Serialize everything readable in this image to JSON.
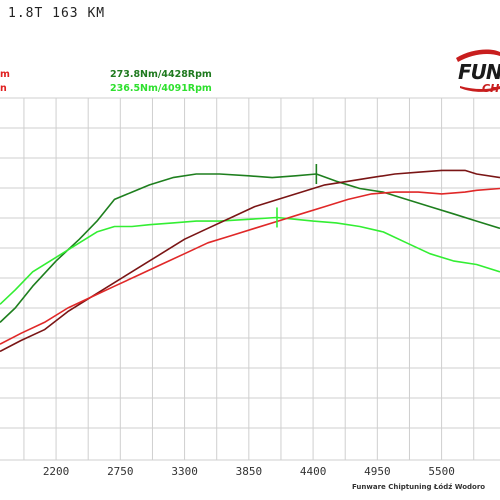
{
  "title": "1.8T 163 KM",
  "peaks": {
    "dark": "273.8Nm/4428Rpm",
    "light": "236.5Nm/4091Rpm"
  },
  "left_fragments": [
    "m",
    "n"
  ],
  "logo": {
    "text": "FUN",
    "sub": "CH"
  },
  "footer": "Funware Chiptuning Łódź Wodoro",
  "chart_data": {
    "type": "line",
    "xlabel": "",
    "ylabel": "",
    "xlim": [
      1720,
      6000
    ],
    "ylim": [
      0,
      1
    ],
    "x_ticks": [
      "2200",
      "2750",
      "3300",
      "3850",
      "4400",
      "4950",
      "5500"
    ],
    "x_tick_values": [
      2200,
      2750,
      3300,
      3850,
      4400,
      4950,
      5500
    ],
    "grid": true,
    "series": [
      {
        "color": "#1e7f1e",
        "x": [
          1720,
          1850,
          2000,
          2200,
          2400,
          2550,
          2700,
          2850,
          3000,
          3200,
          3400,
          3600,
          3850,
          4050,
          4250,
          4428,
          4600,
          4800,
          5000,
          5200,
          5400,
          5600,
          5800,
          6000
        ],
        "y": [
          0.38,
          0.42,
          0.48,
          0.55,
          0.61,
          0.66,
          0.72,
          0.74,
          0.76,
          0.78,
          0.79,
          0.79,
          0.785,
          0.78,
          0.785,
          0.79,
          0.77,
          0.75,
          0.74,
          0.72,
          0.7,
          0.68,
          0.66,
          0.64
        ]
      },
      {
        "color": "#33ee33",
        "x": [
          1720,
          1850,
          2000,
          2200,
          2400,
          2550,
          2700,
          2850,
          3000,
          3200,
          3400,
          3600,
          3850,
          4091,
          4250,
          4400,
          4600,
          4800,
          5000,
          5200,
          5400,
          5600,
          5800,
          6000
        ],
        "y": [
          0.43,
          0.47,
          0.52,
          0.56,
          0.6,
          0.63,
          0.645,
          0.645,
          0.65,
          0.655,
          0.66,
          0.66,
          0.665,
          0.67,
          0.665,
          0.66,
          0.655,
          0.645,
          0.63,
          0.6,
          0.57,
          0.55,
          0.54,
          0.52
        ]
      },
      {
        "color": "#7a1515",
        "x": [
          1720,
          1900,
          2100,
          2300,
          2500,
          2700,
          2900,
          3100,
          3300,
          3500,
          3700,
          3900,
          4100,
          4300,
          4500,
          4700,
          4900,
          5100,
          5300,
          5500,
          5700,
          5800,
          6000
        ],
        "y": [
          0.3,
          0.33,
          0.36,
          0.41,
          0.45,
          0.49,
          0.53,
          0.57,
          0.61,
          0.64,
          0.67,
          0.7,
          0.72,
          0.74,
          0.76,
          0.77,
          0.78,
          0.79,
          0.795,
          0.8,
          0.8,
          0.79,
          0.78
        ]
      },
      {
        "color": "#e02828",
        "x": [
          1720,
          1900,
          2100,
          2300,
          2500,
          2700,
          2900,
          3100,
          3300,
          3500,
          3700,
          3900,
          4100,
          4300,
          4500,
          4700,
          4900,
          5100,
          5300,
          5500,
          5700,
          5800,
          6000
        ],
        "y": [
          0.32,
          0.35,
          0.38,
          0.42,
          0.45,
          0.48,
          0.51,
          0.54,
          0.57,
          0.6,
          0.62,
          0.64,
          0.66,
          0.68,
          0.7,
          0.72,
          0.735,
          0.74,
          0.74,
          0.735,
          0.74,
          0.745,
          0.75
        ]
      }
    ],
    "markers": [
      {
        "series": 0,
        "x": 4428
      },
      {
        "series": 1,
        "x": 4091
      }
    ]
  }
}
